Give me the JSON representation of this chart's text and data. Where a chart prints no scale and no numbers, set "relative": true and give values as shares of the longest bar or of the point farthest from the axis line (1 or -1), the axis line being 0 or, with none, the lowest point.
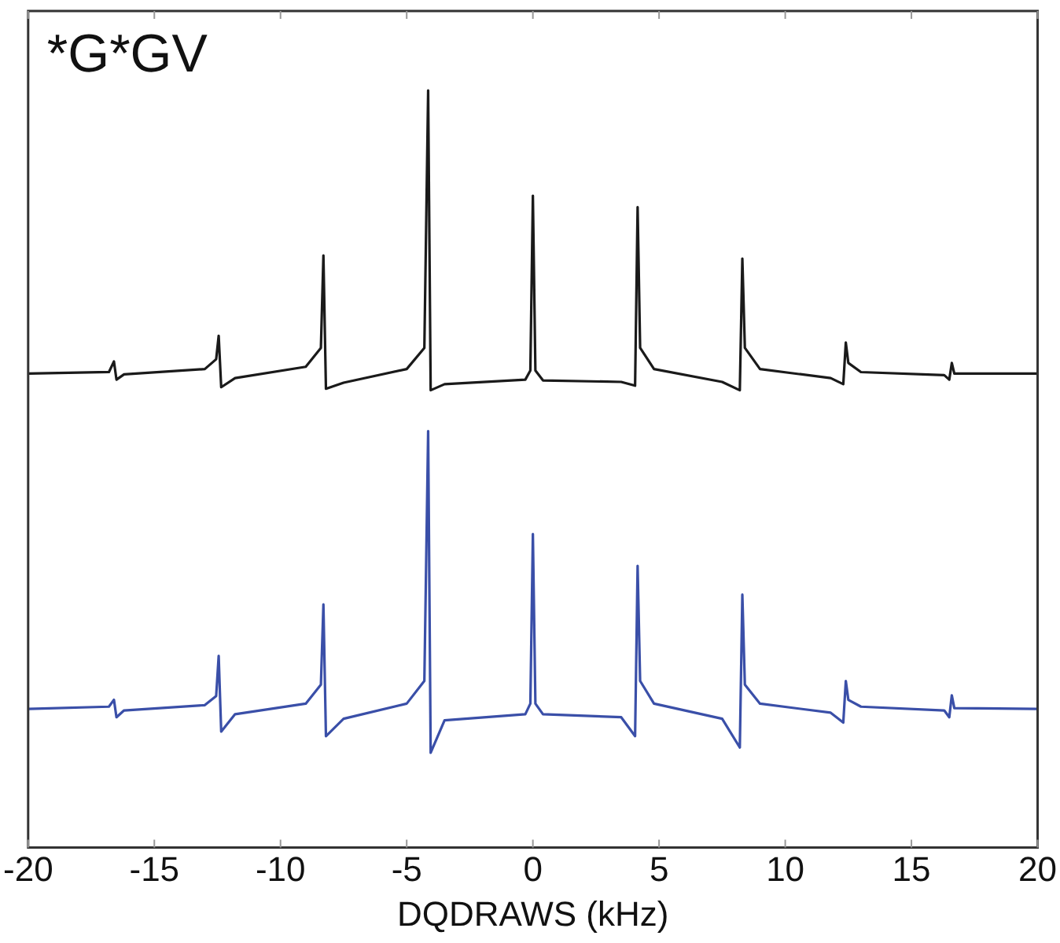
{
  "chart_data": {
    "type": "line",
    "relative": true,
    "xlabel": "DQDRAWS (kHz)",
    "annotations": [
      "*G*GV"
    ],
    "xlim": [
      -20,
      20
    ],
    "xticks": [
      -20,
      -15,
      -10,
      -5,
      0,
      5,
      10,
      15,
      20
    ],
    "tick_labels": "x",
    "grid": false,
    "legend": false,
    "marker": "none",
    "line_style": "solid",
    "series": [
      {
        "color": "#1a1a1a",
        "x": [
          -20,
          -16.8,
          -16.6,
          -16.5,
          -16.2,
          -13,
          -12.55,
          -12.45,
          -12.35,
          -11.8,
          -9,
          -8.4,
          -8.3,
          -8.2,
          -7.5,
          -5,
          -4.3,
          -4.15,
          -4.05,
          -3.5,
          -0.3,
          -0.1,
          0,
          0.1,
          0.4,
          3.5,
          4.05,
          4.15,
          4.25,
          4.8,
          7.5,
          8.2,
          8.3,
          8.4,
          9,
          11.8,
          12.3,
          12.4,
          12.5,
          13,
          16.3,
          16.5,
          16.6,
          16.7,
          20
        ],
        "values": [
          0.626,
          0.628,
          0.642,
          0.618,
          0.625,
          0.632,
          0.645,
          0.676,
          0.608,
          0.62,
          0.635,
          0.66,
          0.782,
          0.606,
          0.614,
          0.632,
          0.66,
          1.0,
          0.604,
          0.612,
          0.618,
          0.63,
          0.861,
          0.63,
          0.617,
          0.615,
          0.61,
          0.846,
          0.66,
          0.632,
          0.615,
          0.604,
          0.778,
          0.66,
          0.632,
          0.62,
          0.612,
          0.667,
          0.64,
          0.628,
          0.624,
          0.618,
          0.64,
          0.626,
          0.626
        ]
      },
      {
        "color": "#3a4fa8",
        "x": [
          -20,
          -16.8,
          -16.6,
          -16.5,
          -16.2,
          -13,
          -12.55,
          -12.45,
          -12.35,
          -11.8,
          -9,
          -8.4,
          -8.3,
          -8.2,
          -7.5,
          -5,
          -4.3,
          -4.15,
          -4.05,
          -3.5,
          -0.3,
          -0.1,
          0,
          0.1,
          0.4,
          3.5,
          4.05,
          4.15,
          4.25,
          4.8,
          7.5,
          8.2,
          8.3,
          8.4,
          9,
          11.8,
          12.3,
          12.4,
          12.5,
          13,
          16.3,
          16.5,
          16.6,
          16.7,
          20
        ],
        "values": [
          0.183,
          0.186,
          0.195,
          0.172,
          0.181,
          0.188,
          0.2,
          0.253,
          0.153,
          0.176,
          0.19,
          0.215,
          0.321,
          0.147,
          0.17,
          0.19,
          0.22,
          0.55,
          0.125,
          0.168,
          0.176,
          0.19,
          0.414,
          0.19,
          0.176,
          0.172,
          0.147,
          0.372,
          0.22,
          0.19,
          0.17,
          0.132,
          0.334,
          0.215,
          0.19,
          0.178,
          0.165,
          0.22,
          0.195,
          0.186,
          0.181,
          0.172,
          0.201,
          0.184,
          0.183
        ]
      }
    ]
  }
}
